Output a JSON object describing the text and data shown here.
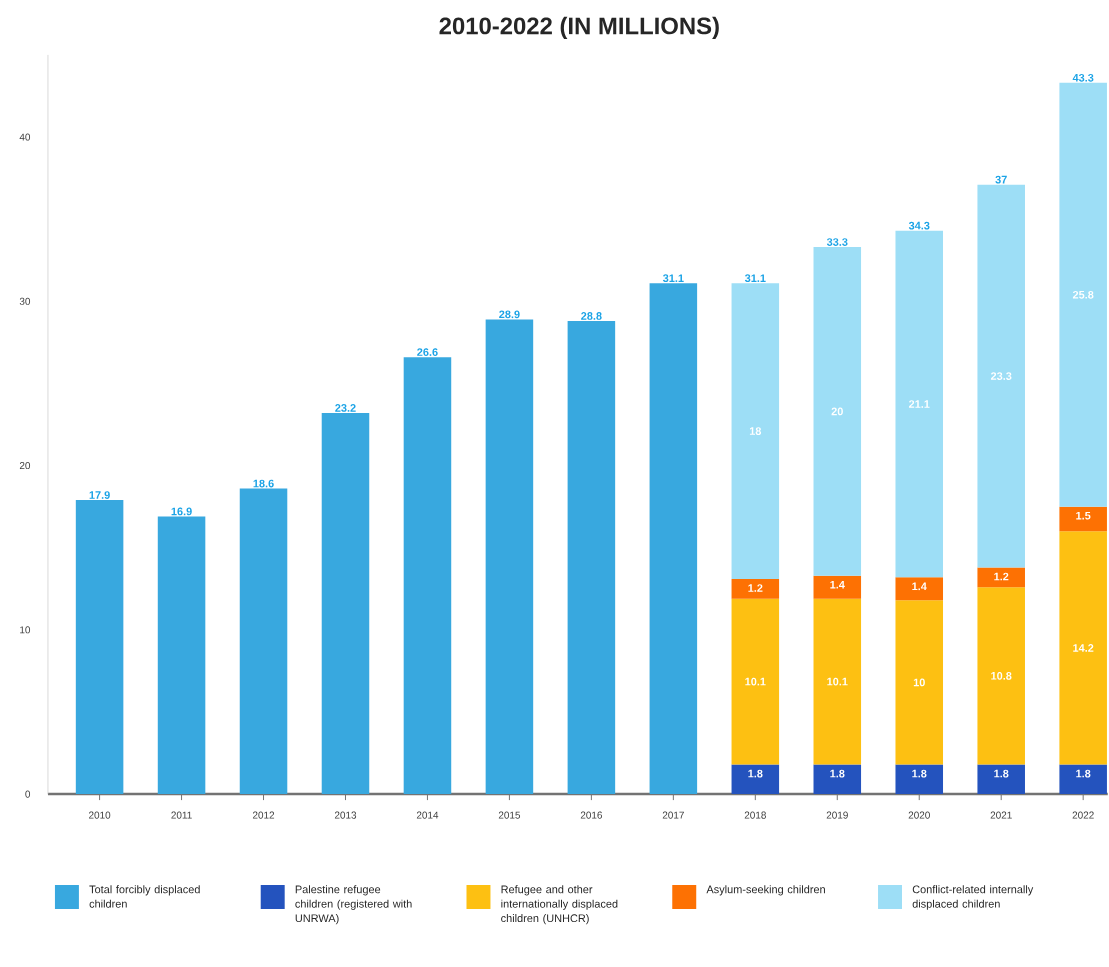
{
  "chart_data": {
    "type": "bar",
    "title": "2010-2022 (IN MILLIONS)",
    "categories": [
      "2010",
      "2011",
      "2012",
      "2013",
      "2014",
      "2015",
      "2016",
      "2017",
      "2018",
      "2019",
      "2020",
      "2021",
      "2022"
    ],
    "stacked": true,
    "series": [
      {
        "name": "Total forcibly displaced children",
        "color": "#38a8df",
        "values": [
          17.9,
          16.9,
          18.6,
          23.2,
          26.6,
          28.9,
          28.8,
          31.1,
          null,
          null,
          null,
          null,
          null
        ]
      },
      {
        "name": "Palestine refugee children (registered with UNRWA)",
        "color": "#2453be",
        "values": [
          null,
          null,
          null,
          null,
          null,
          null,
          null,
          null,
          1.8,
          1.8,
          1.8,
          1.8,
          1.8
        ]
      },
      {
        "name": "Refugee and other internationally displaced children (UNHCR)",
        "color": "#fdc012",
        "values": [
          null,
          null,
          null,
          null,
          null,
          null,
          null,
          null,
          10.1,
          10.1,
          10,
          10.8,
          14.2
        ]
      },
      {
        "name": "Asylum-seeking children",
        "color": "#fd7103",
        "values": [
          null,
          null,
          null,
          null,
          null,
          null,
          null,
          null,
          1.2,
          1.4,
          1.4,
          1.2,
          1.5
        ]
      },
      {
        "name": "Conflict-related internally displaced children",
        "color": "#9ddef6",
        "values": [
          null,
          null,
          null,
          null,
          null,
          null,
          null,
          null,
          18,
          20,
          21.1,
          23.3,
          25.8
        ]
      }
    ],
    "totals": [
      null,
      null,
      null,
      null,
      null,
      null,
      null,
      null,
      "31.1",
      "33.3",
      "34.3",
      "37",
      "43.3"
    ],
    "ylim": [
      0,
      45
    ],
    "yticks": [
      0,
      10,
      20,
      30,
      40
    ],
    "data_labels": true,
    "legend": "bottom"
  }
}
